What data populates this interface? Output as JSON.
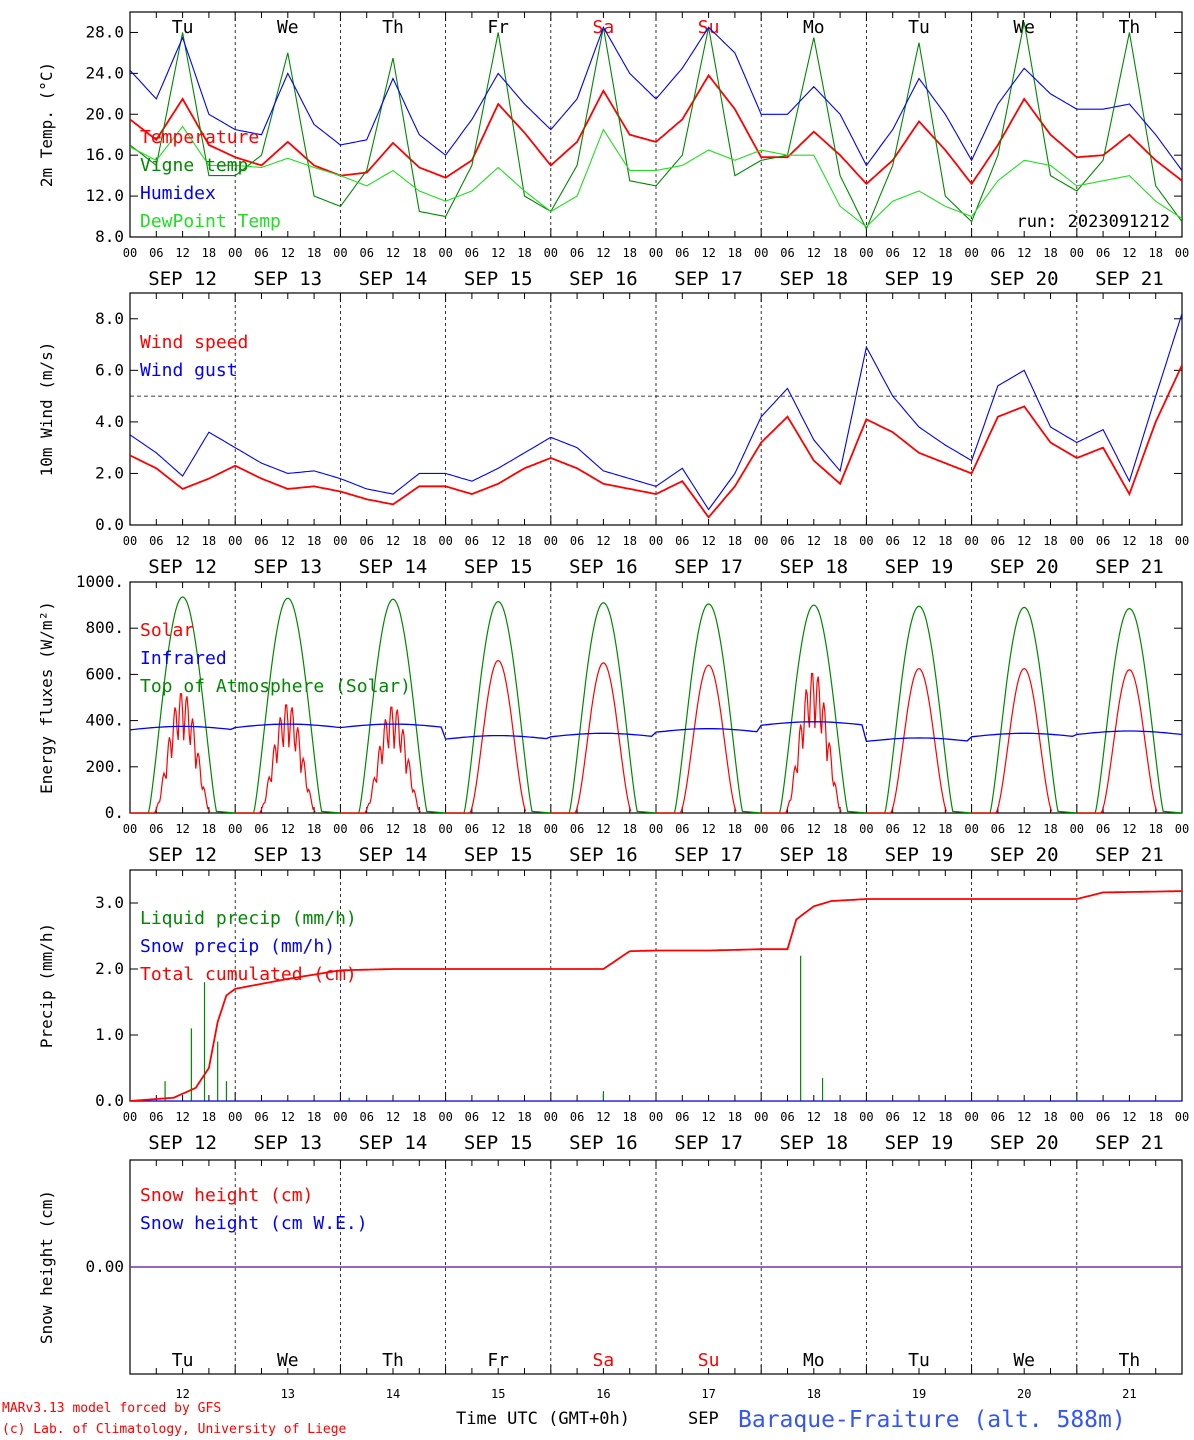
{
  "days": [
    "Tu",
    "We",
    "Th",
    "Fr",
    "Sa",
    "Su",
    "Mo",
    "Tu",
    "We",
    "Th"
  ],
  "weekend_days": [
    "Sa",
    "Su"
  ],
  "dates": [
    "SEP 12",
    "SEP 13",
    "SEP 14",
    "SEP 15",
    "SEP 16",
    "SEP 17",
    "SEP 18",
    "SEP 19",
    "SEP 20",
    "SEP 21"
  ],
  "bottom_day_numbers": [
    "12",
    "13",
    "14",
    "15",
    "16",
    "17",
    "18",
    "19",
    "20",
    "21"
  ],
  "hour_labels": [
    "00",
    "06",
    "12",
    "18"
  ],
  "run_label": "run: 2023091212",
  "x_title": "Time UTC (GMT+0h)",
  "month_label": "SEP",
  "credit_1": "MARv3.13 model forced by GFS",
  "credit_2": "(c) Lab. of Climatology, University of Liege",
  "station": "Baraque-Fraiture (alt. 588m)",
  "colors": {
    "red": "#ff0000",
    "blue": "#0000ff",
    "green": "#008800",
    "lightgreen": "#22dd22",
    "purple": "#7733aa",
    "station": "#3355ff"
  },
  "chart_data": [
    {
      "type": "line",
      "id": "temp",
      "ylabel": "2m Temp. (°C)",
      "ylim": [
        8,
        30
      ],
      "yticks": [
        "8.0",
        "12.0",
        "16.0",
        "20.0",
        "24.0",
        "28.0"
      ],
      "ytick_values": [
        8,
        12,
        16,
        20,
        24,
        28
      ],
      "x_hours": [
        0,
        6,
        12,
        18,
        24,
        30,
        36,
        42,
        48,
        54,
        60,
        66,
        72,
        78,
        84,
        90,
        96,
        102,
        108,
        114,
        120,
        126,
        132,
        138,
        144,
        150,
        156,
        162,
        168,
        174,
        180,
        186,
        192,
        198,
        204,
        210,
        216,
        222,
        228,
        234,
        240
      ],
      "series": [
        {
          "name": "Temperature",
          "color": "#ff0000",
          "values": [
            19.5,
            17.5,
            21.5,
            17.0,
            15.8,
            15.0,
            17.3,
            15.0,
            14.0,
            14.3,
            17.2,
            14.8,
            13.8,
            15.5,
            21.0,
            18.2,
            15.0,
            17.3,
            22.3,
            18.0,
            17.3,
            19.5,
            23.8,
            20.5,
            15.8,
            15.8,
            18.3,
            16.0,
            13.2,
            15.5,
            19.3,
            16.5,
            13.2,
            17.0,
            21.5,
            18.0,
            15.8,
            16.0,
            18.0,
            15.5,
            13.5
          ]
        },
        {
          "name": "Vigne temp",
          "color": "#008800",
          "values": [
            17.0,
            15.0,
            28.0,
            14.0,
            14.0,
            16.0,
            26.0,
            12.0,
            11.0,
            14.5,
            25.5,
            10.5,
            10.0,
            15.0,
            28.0,
            12.0,
            10.5,
            15.0,
            28.5,
            13.5,
            13.0,
            16.0,
            28.5,
            14.0,
            15.5,
            16.0,
            27.5,
            14.0,
            8.8,
            15.0,
            27.0,
            12.0,
            9.5,
            16.0,
            29.0,
            14.0,
            12.5,
            15.5,
            28.0,
            13.0,
            9.5
          ]
        },
        {
          "name": "Humidex",
          "color": "#0000ff",
          "values": [
            24.3,
            21.5,
            27.5,
            20.0,
            18.5,
            18.0,
            24.0,
            19.0,
            17.0,
            17.5,
            23.5,
            18.0,
            16.0,
            19.5,
            24.0,
            21.0,
            18.5,
            21.5,
            28.5,
            24.0,
            21.5,
            24.5,
            28.5,
            26.0,
            20.0,
            20.0,
            22.7,
            20.0,
            15.0,
            18.5,
            23.5,
            20.0,
            15.5,
            21.0,
            24.5,
            22.0,
            20.5,
            20.5,
            21.0,
            18.0,
            14.5
          ]
        },
        {
          "name": "DewPoint Temp",
          "color": "#22dd22",
          "values": [
            16.8,
            15.5,
            18.8,
            15.0,
            15.0,
            14.8,
            15.7,
            14.8,
            14.0,
            13.0,
            14.5,
            12.5,
            11.5,
            12.5,
            14.8,
            12.5,
            10.5,
            12.0,
            18.5,
            14.5,
            14.5,
            15.0,
            16.5,
            15.5,
            16.5,
            16.0,
            16.0,
            11.0,
            9.0,
            11.5,
            12.5,
            11.0,
            10.0,
            13.5,
            15.5,
            15.0,
            13.0,
            13.5,
            14.0,
            11.5,
            9.8
          ]
        }
      ]
    },
    {
      "type": "line",
      "id": "wind",
      "ylabel": "10m Wind (m/s)",
      "ylim": [
        0,
        9.0
      ],
      "yticks": [
        "0.0",
        "2.0",
        "4.0",
        "6.0",
        "8.0"
      ],
      "ytick_values": [
        0,
        2,
        4,
        6,
        8
      ],
      "dashed_y": 5,
      "x_hours": [
        0,
        6,
        12,
        18,
        24,
        30,
        36,
        42,
        48,
        54,
        60,
        66,
        72,
        78,
        84,
        90,
        96,
        102,
        108,
        114,
        120,
        126,
        132,
        138,
        144,
        150,
        156,
        162,
        168,
        174,
        180,
        186,
        192,
        198,
        204,
        210,
        216,
        222,
        228,
        234,
        240
      ],
      "series": [
        {
          "name": "Wind speed",
          "color": "#ff0000",
          "values": [
            2.7,
            2.2,
            1.4,
            1.8,
            2.3,
            1.8,
            1.4,
            1.5,
            1.3,
            1.0,
            0.8,
            1.5,
            1.5,
            1.2,
            1.6,
            2.2,
            2.6,
            2.2,
            1.6,
            1.4,
            1.2,
            1.7,
            0.3,
            1.5,
            3.2,
            4.2,
            2.5,
            1.6,
            4.1,
            3.6,
            2.8,
            2.4,
            2.0,
            4.2,
            4.6,
            3.2,
            2.6,
            3.0,
            1.2,
            4.0,
            6.2
          ]
        },
        {
          "name": "Wind gust",
          "color": "#0000ff",
          "values": [
            3.5,
            2.8,
            1.9,
            3.6,
            3.0,
            2.4,
            2.0,
            2.1,
            1.8,
            1.4,
            1.2,
            2.0,
            2.0,
            1.7,
            2.2,
            2.8,
            3.4,
            3.0,
            2.1,
            1.8,
            1.5,
            2.2,
            0.6,
            2.0,
            4.2,
            5.3,
            3.3,
            2.1,
            6.9,
            5.0,
            3.8,
            3.1,
            2.5,
            5.4,
            6.0,
            3.8,
            3.2,
            3.7,
            1.7,
            5.0,
            8.2
          ]
        }
      ]
    },
    {
      "type": "line",
      "id": "energy",
      "ylabel": "Energy fluxes (W/m²)",
      "ylim": [
        0,
        1000
      ],
      "yticks": [
        "0.",
        "200.",
        "400.",
        "600.",
        "800.",
        "1000."
      ],
      "ytick_values": [
        0,
        200,
        400,
        600,
        800,
        1000
      ],
      "series": [
        {
          "name": "Solar",
          "color": "#ff0000",
          "daily_peak": [
            530,
            480,
            470,
            660,
            650,
            640,
            620,
            625,
            625,
            620
          ]
        },
        {
          "name": "Infrared",
          "color": "#0000ff",
          "daily_mean": [
            360,
            370,
            370,
            320,
            330,
            350,
            380,
            310,
            330,
            340
          ]
        },
        {
          "name": "Top of Atmosphere (Solar)",
          "color": "#008800",
          "daily_peak": [
            935,
            930,
            925,
            915,
            910,
            905,
            900,
            895,
            890,
            885
          ]
        }
      ]
    },
    {
      "type": "line",
      "id": "precip",
      "ylabel": "Precip (mm/h)",
      "ylim": [
        0,
        3.5
      ],
      "yticks": [
        "0.0",
        "1.0",
        "2.0",
        "3.0"
      ],
      "ytick_values": [
        0,
        1,
        2,
        3
      ],
      "series": [
        {
          "name": "Liquid precip (mm/h)",
          "color": "#008800",
          "spikes": [
            [
              8,
              0.3
            ],
            [
              14,
              1.1
            ],
            [
              17,
              1.8
            ],
            [
              20,
              0.9
            ],
            [
              22,
              0.3
            ],
            [
              50,
              0.05
            ],
            [
              108,
              0.15
            ],
            [
              153,
              2.2
            ],
            [
              158,
              0.35
            ],
            [
              216,
              0.05
            ]
          ]
        },
        {
          "name": "Snow precip (mm/h)",
          "color": "#0000ff",
          "values": [
            0,
            0
          ]
        },
        {
          "name": "Total cumulated (cm)",
          "color": "#ff0000",
          "x_hours": [
            0,
            10,
            15,
            18,
            20,
            22,
            24,
            36,
            48,
            60,
            108,
            114,
            120,
            132,
            144,
            150,
            152,
            156,
            160,
            168,
            180,
            216,
            222,
            240
          ],
          "values": [
            0,
            0.05,
            0.2,
            0.5,
            1.2,
            1.6,
            1.7,
            1.85,
            1.98,
            2.0,
            2.0,
            2.27,
            2.28,
            2.28,
            2.3,
            2.3,
            2.75,
            2.95,
            3.03,
            3.06,
            3.06,
            3.06,
            3.16,
            3.18
          ]
        }
      ]
    },
    {
      "type": "line",
      "id": "snow",
      "ylabel": "Snow height (cm)",
      "ylim": [
        -1,
        1
      ],
      "yticks": [
        "0.00"
      ],
      "ytick_values": [
        0
      ],
      "series": [
        {
          "name": "Snow height (cm)",
          "color": "#ff0000",
          "values": [
            0,
            0
          ]
        },
        {
          "name": "Snow height (cm W.E.)",
          "color": "#0000ff",
          "values": [
            0,
            0
          ]
        }
      ]
    }
  ]
}
